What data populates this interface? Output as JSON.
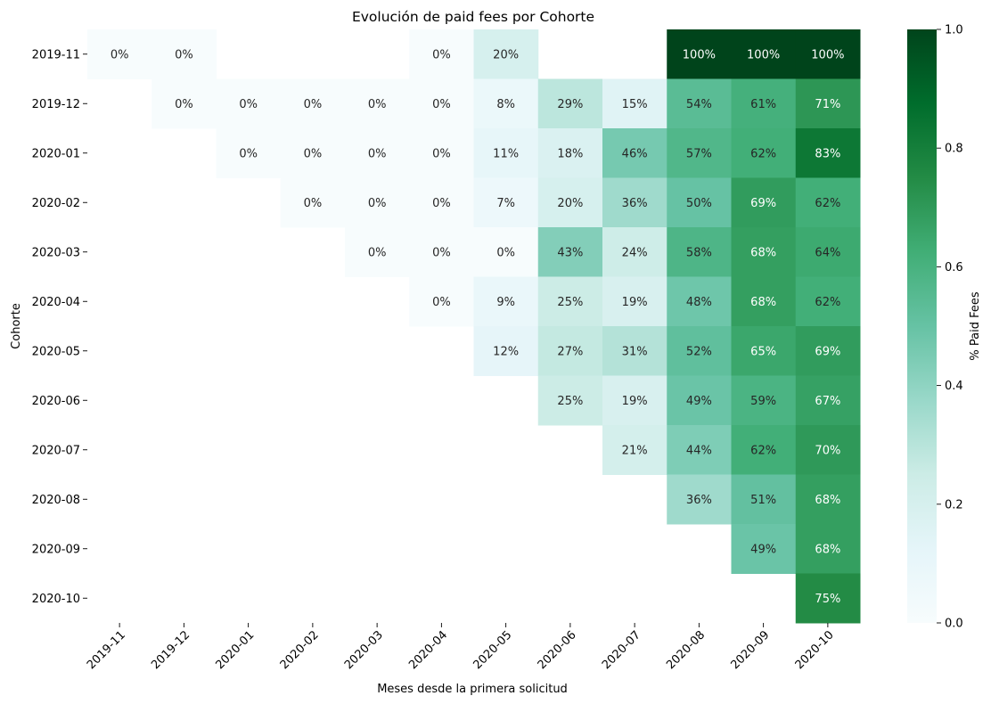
{
  "chart_data": {
    "type": "heatmap",
    "title": "Evolución de paid fees por Cohorte",
    "xlabel": "Meses desde la primera solicitud",
    "ylabel": "Cohorte",
    "x_categories": [
      "2019-11",
      "2019-12",
      "2020-01",
      "2020-02",
      "2020-03",
      "2020-04",
      "2020-05",
      "2020-06",
      "2020-07",
      "2020-08",
      "2020-09",
      "2020-10"
    ],
    "y_categories": [
      "2019-11",
      "2019-12",
      "2020-01",
      "2020-02",
      "2020-03",
      "2020-04",
      "2020-05",
      "2020-06",
      "2020-07",
      "2020-08",
      "2020-09",
      "2020-10"
    ],
    "values": [
      [
        0,
        0,
        null,
        null,
        null,
        0,
        0.2,
        null,
        null,
        1.0,
        1.0,
        1.0
      ],
      [
        null,
        0,
        0,
        0,
        0,
        0,
        0.08,
        0.29,
        0.15,
        0.54,
        0.61,
        0.71
      ],
      [
        null,
        null,
        0,
        0,
        0,
        0,
        0.11,
        0.18,
        0.46,
        0.57,
        0.62,
        0.83
      ],
      [
        null,
        null,
        null,
        0,
        0,
        0,
        0.07,
        0.2,
        0.36,
        0.5,
        0.69,
        0.62
      ],
      [
        null,
        null,
        null,
        null,
        0,
        0,
        0,
        0.43,
        0.24,
        0.58,
        0.68,
        0.64
      ],
      [
        null,
        null,
        null,
        null,
        null,
        0,
        0.09,
        0.25,
        0.19,
        0.48,
        0.68,
        0.62
      ],
      [
        null,
        null,
        null,
        null,
        null,
        null,
        0.12,
        0.27,
        0.31,
        0.52,
        0.65,
        0.69
      ],
      [
        null,
        null,
        null,
        null,
        null,
        null,
        null,
        0.25,
        0.19,
        0.49,
        0.59,
        0.67
      ],
      [
        null,
        null,
        null,
        null,
        null,
        null,
        null,
        null,
        0.21,
        0.44,
        0.62,
        0.7
      ],
      [
        null,
        null,
        null,
        null,
        null,
        null,
        null,
        null,
        null,
        0.36,
        0.51,
        0.68
      ],
      [
        null,
        null,
        null,
        null,
        null,
        null,
        null,
        null,
        null,
        null,
        0.49,
        0.68
      ],
      [
        null,
        null,
        null,
        null,
        null,
        null,
        null,
        null,
        null,
        null,
        null,
        0.75
      ]
    ],
    "cell_labels": [
      [
        "0%",
        "0%",
        "",
        "",
        "",
        "0%",
        "20%",
        "",
        "",
        "100%",
        "100%",
        "100%"
      ],
      [
        "",
        "0%",
        "0%",
        "0%",
        "0%",
        "0%",
        "8%",
        "29%",
        "15%",
        "54%",
        "61%",
        "71%"
      ],
      [
        "",
        "",
        "0%",
        "0%",
        "0%",
        "0%",
        "11%",
        "18%",
        "46%",
        "57%",
        "62%",
        "83%"
      ],
      [
        "",
        "",
        "",
        "0%",
        "0%",
        "0%",
        "7%",
        "20%",
        "36%",
        "50%",
        "69%",
        "62%"
      ],
      [
        "",
        "",
        "",
        "",
        "0%",
        "0%",
        "0%",
        "43%",
        "24%",
        "58%",
        "68%",
        "64%"
      ],
      [
        "",
        "",
        "",
        "",
        "",
        "0%",
        "9%",
        "25%",
        "19%",
        "48%",
        "68%",
        "62%"
      ],
      [
        "",
        "",
        "",
        "",
        "",
        "",
        "12%",
        "27%",
        "31%",
        "52%",
        "65%",
        "69%"
      ],
      [
        "",
        "",
        "",
        "",
        "",
        "",
        "",
        "25%",
        "19%",
        "49%",
        "59%",
        "67%"
      ],
      [
        "",
        "",
        "",
        "",
        "",
        "",
        "",
        "",
        "21%",
        "44%",
        "62%",
        "70%"
      ],
      [
        "",
        "",
        "",
        "",
        "",
        "",
        "",
        "",
        "",
        "36%",
        "51%",
        "68%"
      ],
      [
        "",
        "",
        "",
        "",
        "",
        "",
        "",
        "",
        "",
        "",
        "49%",
        "68%"
      ],
      [
        "",
        "",
        "",
        "",
        "",
        "",
        "",
        "",
        "",
        "",
        "",
        "75%"
      ]
    ],
    "vmin": 0,
    "vmax": 1,
    "colormap": "BuGn",
    "colorbar": {
      "label": "% Paid Fees",
      "ticks": [
        0.0,
        0.2,
        0.4,
        0.6,
        0.8,
        1.0
      ],
      "tick_labels": [
        "0.0",
        "0.2",
        "0.4",
        "0.6",
        "0.8",
        "1.0"
      ],
      "placement": "right"
    },
    "grid": false
  }
}
